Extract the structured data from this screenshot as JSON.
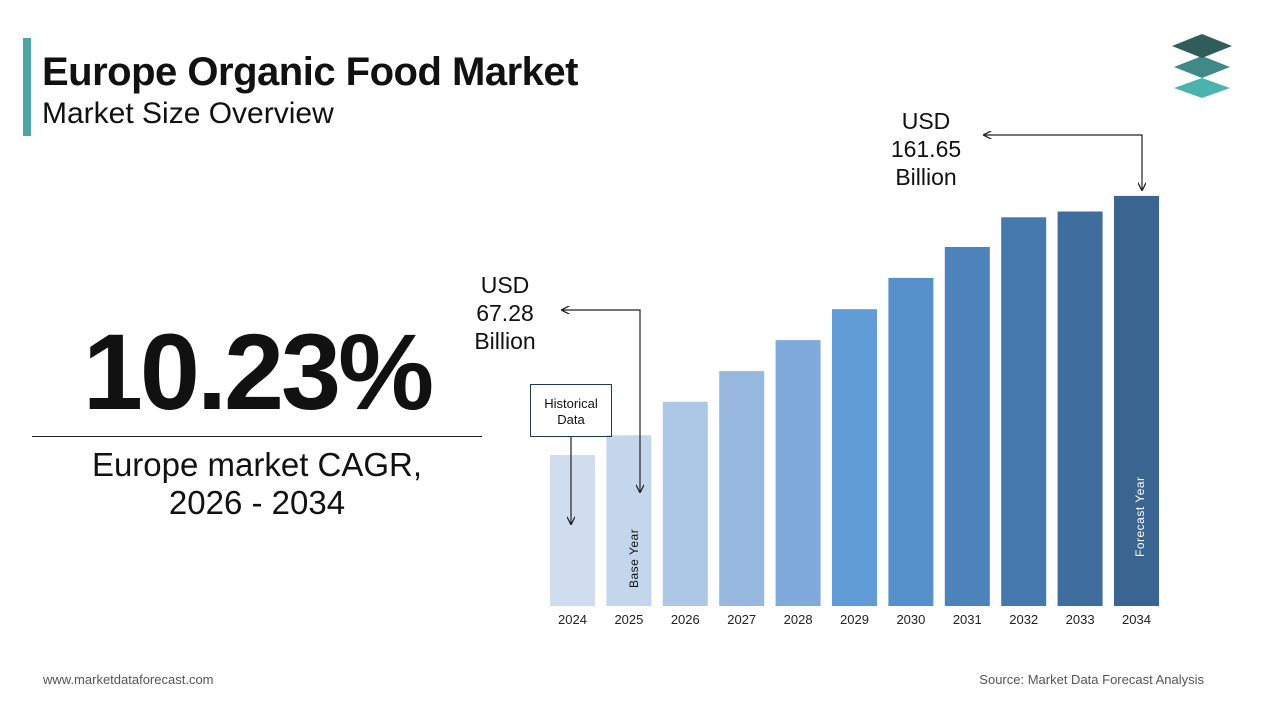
{
  "header": {
    "title": "Europe Organic Food Market",
    "subtitle": "Market Size Overview"
  },
  "kpi": {
    "cagr_value": "10.23%",
    "cagr_label_line1": "Europe market CAGR,",
    "cagr_label_line2": "2026 - 2034"
  },
  "callouts": {
    "start": {
      "line1": "USD",
      "line2": "67.28",
      "line3": "Billion"
    },
    "end": {
      "line1": "USD",
      "line2": "161.65",
      "line3": "Billion"
    },
    "historical_line1": "Historical",
    "historical_line2": "Data",
    "base_year_label": "Base Year",
    "forecast_year_label": "Forecast Year"
  },
  "footer": {
    "website": "www.marketdataforecast.com",
    "source": "Source: Market Data Forecast Analysis"
  },
  "colors": {
    "accent": "#4aa7a6",
    "logo_top": "#2f5d5a",
    "logo_mid": "#3f8a86",
    "logo_bottom": "#4ab3ad"
  },
  "chart_data": {
    "type": "bar",
    "title": "",
    "xlabel": "",
    "ylabel": "",
    "categories": [
      "2024",
      "2025",
      "2026",
      "2027",
      "2028",
      "2029",
      "2030",
      "2031",
      "2032",
      "2033",
      "2034"
    ],
    "values": [
      59.5,
      67.28,
      80.5,
      92.6,
      104.8,
      117.0,
      129.3,
      141.5,
      153.2,
      155.5,
      161.65
    ],
    "bar_colors": [
      "#d0ddef",
      "#c4d6ec",
      "#adc8e7",
      "#97b9e0",
      "#7eaadc",
      "#5f9cd6",
      "#5590cb",
      "#4d83bb",
      "#4578ad",
      "#3f6e9e",
      "#3a6590"
    ],
    "ylim": [
      0,
      175
    ],
    "grid": false,
    "legend": "none"
  }
}
